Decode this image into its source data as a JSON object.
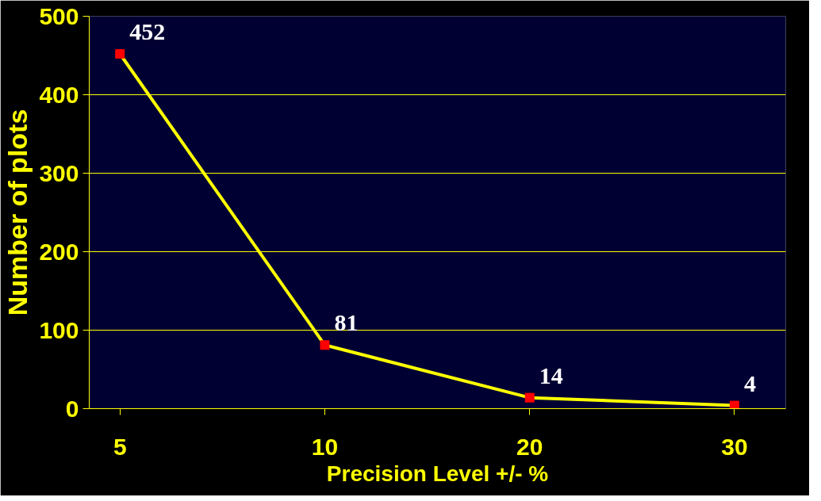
{
  "chart_data": {
    "type": "line",
    "xlabel": "Precision Level +/- %",
    "ylabel": "Number of plots",
    "categories": [
      "5",
      "10",
      "20",
      "30"
    ],
    "series": [
      {
        "color": "#ffff00",
        "values": [
          452,
          81,
          14,
          4
        ]
      }
    ],
    "ylim": [
      0,
      500
    ],
    "yticks": [
      0,
      100,
      200,
      300,
      400,
      500
    ],
    "grid": "y",
    "marker": "square",
    "data_labels": true
  }
}
